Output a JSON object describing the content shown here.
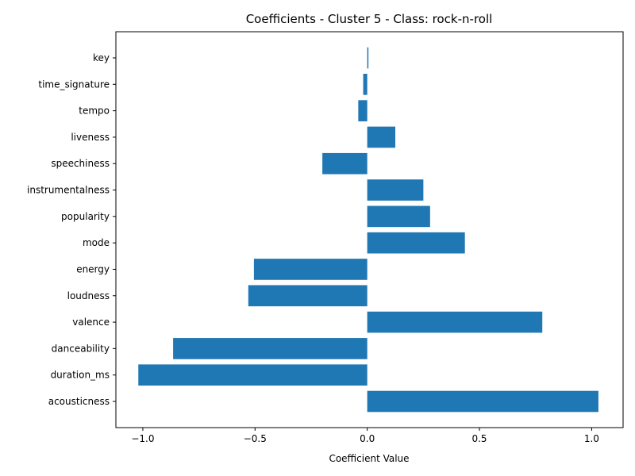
{
  "chart_data": {
    "type": "bar",
    "orientation": "horizontal",
    "title": "Coefficients - Cluster 5 - Class: rock-n-roll",
    "xlabel": "Coefficient Value",
    "ylabel": "",
    "xlim": [
      -1.12,
      1.14
    ],
    "xticks": [
      -1.0,
      -0.5,
      0.0,
      0.5,
      1.0
    ],
    "xtick_labels": [
      "−1.0",
      "−0.5",
      "0.0",
      "0.5",
      "1.0"
    ],
    "categories": [
      "acousticness",
      "duration_ms",
      "danceability",
      "valence",
      "loudness",
      "energy",
      "mode",
      "popularity",
      "instrumentalness",
      "speechiness",
      "liveness",
      "tempo",
      "time_signature",
      "key"
    ],
    "values": [
      1.03,
      -1.02,
      -0.865,
      0.78,
      -0.53,
      -0.505,
      0.435,
      0.28,
      0.25,
      -0.2,
      0.125,
      -0.04,
      -0.018,
      0.005
    ],
    "bar_color": "#1f77b4",
    "grid": false,
    "legend": "none"
  }
}
